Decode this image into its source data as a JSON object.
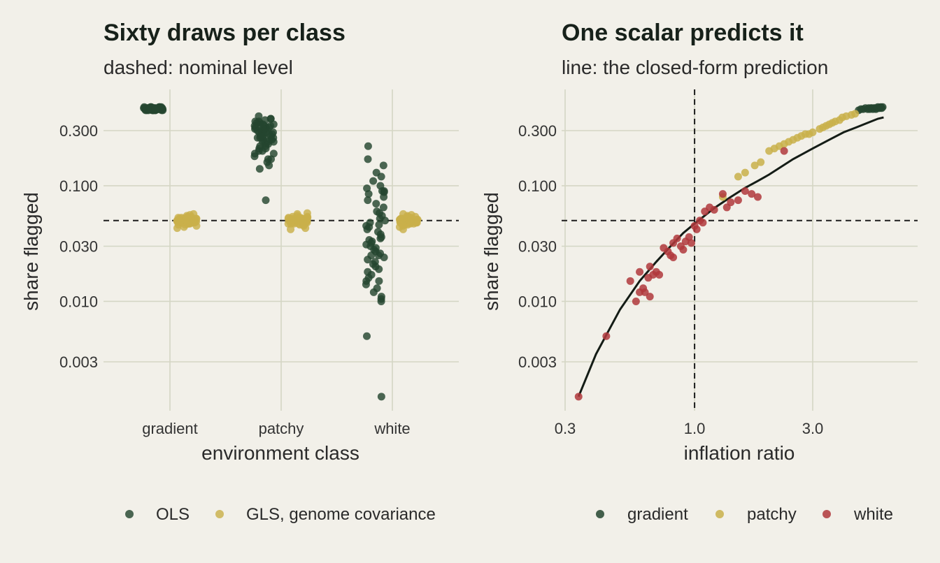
{
  "colors": {
    "background": "#f2f0e9",
    "grid": "#d4d6c4",
    "ols": "#24452f",
    "gls": "#c9b04a",
    "gradient": "#24452f",
    "patchy": "#c9b04a",
    "white": "#b0383c",
    "line": "#141c16"
  },
  "chart_data": [
    {
      "type": "scatter",
      "title": "Sixty draws per class",
      "subtitle": "dashed: nominal level",
      "xlabel": "environment class",
      "ylabel": "share flagged",
      "y_scale": "log10",
      "y_ticks": [
        0.003,
        0.01,
        0.03,
        0.1,
        0.3
      ],
      "y_tick_labels": [
        "0.003",
        "0.010",
        "0.030",
        "0.100",
        "0.300"
      ],
      "categories": [
        "gradient",
        "patchy",
        "white"
      ],
      "reference_y": 0.05,
      "grid": true,
      "legend_position": "bottom",
      "series": [
        {
          "name": "OLS",
          "values_by_category": {
            "gradient": [
              0.46,
              0.47,
              0.47,
              0.45,
              0.46,
              0.48,
              0.46,
              0.47,
              0.45,
              0.46,
              0.47,
              0.46,
              0.45,
              0.48,
              0.47,
              0.46,
              0.46,
              0.47,
              0.45,
              0.46,
              0.47,
              0.46,
              0.48,
              0.46,
              0.45,
              0.47,
              0.46,
              0.47,
              0.46,
              0.45,
              0.47,
              0.46,
              0.48,
              0.46,
              0.47,
              0.45,
              0.46,
              0.47,
              0.46,
              0.45,
              0.47,
              0.46,
              0.47,
              0.46,
              0.45,
              0.48,
              0.46,
              0.47,
              0.46,
              0.46,
              0.47,
              0.45,
              0.46,
              0.47,
              0.46,
              0.48,
              0.46,
              0.47,
              0.45,
              0.46
            ],
            "patchy": [
              0.4,
              0.38,
              0.37,
              0.36,
              0.35,
              0.35,
              0.34,
              0.34,
              0.33,
              0.33,
              0.32,
              0.32,
              0.31,
              0.31,
              0.3,
              0.3,
              0.29,
              0.29,
              0.28,
              0.28,
              0.27,
              0.27,
              0.26,
              0.26,
              0.25,
              0.25,
              0.24,
              0.24,
              0.23,
              0.22,
              0.21,
              0.2,
              0.19,
              0.18,
              0.17,
              0.16,
              0.15,
              0.14,
              0.075,
              0.36,
              0.33,
              0.31,
              0.29,
              0.27,
              0.26,
              0.25,
              0.24,
              0.23,
              0.22,
              0.2,
              0.3,
              0.28,
              0.32,
              0.34,
              0.26,
              0.21,
              0.19,
              0.17,
              0.38,
              0.29
            ],
            "white": [
              0.22,
              0.17,
              0.15,
              0.13,
              0.12,
              0.11,
              0.1,
              0.095,
              0.09,
              0.088,
              0.085,
              0.08,
              0.075,
              0.07,
              0.065,
              0.06,
              0.058,
              0.055,
              0.052,
              0.05,
              0.048,
              0.046,
              0.044,
              0.042,
              0.04,
              0.038,
              0.036,
              0.034,
              0.033,
              0.032,
              0.031,
              0.03,
              0.029,
              0.028,
              0.027,
              0.026,
              0.025,
              0.024,
              0.023,
              0.022,
              0.021,
              0.02,
              0.019,
              0.018,
              0.017,
              0.016,
              0.015,
              0.014,
              0.013,
              0.012,
              0.011,
              0.0105,
              0.01,
              0.005,
              0.0015,
              0.09,
              0.045,
              0.035,
              0.025,
              0.015
            ]
          }
        },
        {
          "name": "GLS, genome covariance",
          "values_by_category": {
            "gradient": [
              0.05,
              0.052,
              0.048,
              0.051,
              0.049,
              0.053,
              0.047,
              0.05,
              0.054,
              0.046,
              0.05,
              0.051,
              0.049,
              0.052,
              0.048,
              0.05,
              0.055,
              0.045,
              0.05,
              0.051,
              0.049,
              0.053,
              0.047,
              0.05,
              0.052,
              0.048,
              0.05,
              0.051,
              0.049,
              0.05,
              0.056,
              0.044,
              0.05,
              0.052,
              0.048,
              0.05,
              0.051,
              0.049,
              0.053,
              0.047,
              0.05,
              0.052,
              0.048,
              0.05,
              0.051,
              0.049,
              0.05,
              0.054,
              0.046,
              0.05,
              0.052,
              0.048,
              0.05,
              0.051,
              0.049,
              0.053,
              0.047,
              0.05,
              0.043,
              0.057
            ],
            "patchy": [
              0.05,
              0.052,
              0.048,
              0.051,
              0.049,
              0.053,
              0.047,
              0.05,
              0.054,
              0.046,
              0.05,
              0.051,
              0.049,
              0.052,
              0.048,
              0.05,
              0.055,
              0.045,
              0.05,
              0.051,
              0.049,
              0.053,
              0.047,
              0.05,
              0.052,
              0.048,
              0.05,
              0.051,
              0.049,
              0.05,
              0.057,
              0.043,
              0.05,
              0.052,
              0.048,
              0.05,
              0.051,
              0.049,
              0.053,
              0.047,
              0.05,
              0.052,
              0.048,
              0.05,
              0.051,
              0.049,
              0.05,
              0.054,
              0.046,
              0.05,
              0.052,
              0.048,
              0.05,
              0.051,
              0.049,
              0.053,
              0.047,
              0.05,
              0.042,
              0.058
            ],
            "white": [
              0.05,
              0.052,
              0.048,
              0.051,
              0.049,
              0.053,
              0.047,
              0.05,
              0.054,
              0.046,
              0.05,
              0.051,
              0.049,
              0.052,
              0.048,
              0.05,
              0.055,
              0.045,
              0.05,
              0.051,
              0.049,
              0.053,
              0.047,
              0.05,
              0.052,
              0.048,
              0.05,
              0.051,
              0.049,
              0.05,
              0.056,
              0.044,
              0.05,
              0.052,
              0.048,
              0.05,
              0.051,
              0.049,
              0.053,
              0.047,
              0.05,
              0.052,
              0.048,
              0.05,
              0.051,
              0.049,
              0.05,
              0.054,
              0.046,
              0.05,
              0.052,
              0.048,
              0.05,
              0.051,
              0.049,
              0.053,
              0.047,
              0.05,
              0.042,
              0.057
            ]
          }
        }
      ]
    },
    {
      "type": "scatter",
      "title": "One scalar predicts it",
      "subtitle": "line: the closed-form prediction",
      "xlabel": "inflation ratio",
      "ylabel": "share flagged",
      "x_scale": "log10",
      "y_scale": "log10",
      "xlim": [
        0.3,
        6.0
      ],
      "x_ticks": [
        0.3,
        1,
        3
      ],
      "x_tick_labels": [
        "0.3",
        "1.0",
        "3.0"
      ],
      "y_ticks": [
        0.003,
        0.01,
        0.03,
        0.1,
        0.3
      ],
      "y_tick_labels": [
        "0.003",
        "0.010",
        "0.030",
        "0.100",
        "0.300"
      ],
      "reference_y": 0.05,
      "reference_x": 1.0,
      "grid": true,
      "legend_position": "bottom",
      "series": [
        {
          "name": "gradient",
          "x": [
            4.6,
            4.7,
            4.8,
            4.9,
            5.0,
            5.05,
            5.1,
            5.15,
            5.2,
            5.25,
            5.3,
            5.35,
            5.4,
            5.45,
            5.5,
            5.55,
            5.6,
            5.65,
            5.7,
            5.75
          ],
          "y": [
            0.45,
            0.46,
            0.46,
            0.47,
            0.46,
            0.47,
            0.46,
            0.47,
            0.47,
            0.46,
            0.47,
            0.47,
            0.46,
            0.47,
            0.48,
            0.47,
            0.47,
            0.48,
            0.47,
            0.48
          ]
        },
        {
          "name": "patchy",
          "x": [
            1.3,
            1.5,
            1.6,
            1.75,
            1.85,
            2.0,
            2.1,
            2.2,
            2.3,
            2.4,
            2.5,
            2.6,
            2.7,
            2.8,
            2.9,
            3.0,
            3.2,
            3.3,
            3.4,
            3.5,
            3.6,
            3.7,
            3.85,
            3.95,
            4.1,
            4.3,
            4.45
          ],
          "y": [
            0.08,
            0.12,
            0.13,
            0.15,
            0.16,
            0.2,
            0.21,
            0.22,
            0.23,
            0.24,
            0.25,
            0.26,
            0.27,
            0.28,
            0.28,
            0.29,
            0.31,
            0.32,
            0.33,
            0.34,
            0.35,
            0.36,
            0.37,
            0.39,
            0.4,
            0.41,
            0.42
          ]
        },
        {
          "name": "white",
          "x": [
            0.34,
            0.44,
            0.55,
            0.58,
            0.6,
            0.62,
            0.63,
            0.65,
            0.66,
            0.68,
            0.7,
            0.72,
            0.75,
            0.78,
            0.8,
            0.82,
            0.85,
            0.88,
            0.9,
            0.92,
            0.95,
            0.97,
            1.0,
            1.02,
            1.05,
            1.08,
            1.1,
            1.15,
            1.2,
            1.3,
            1.35,
            1.4,
            1.5,
            1.6,
            1.7,
            1.8,
            2.3,
            0.66,
            0.6,
            0.82
          ],
          "y": [
            0.0015,
            0.005,
            0.015,
            0.01,
            0.018,
            0.013,
            0.012,
            0.016,
            0.011,
            0.017,
            0.018,
            0.017,
            0.029,
            0.027,
            0.025,
            0.032,
            0.035,
            0.03,
            0.028,
            0.033,
            0.036,
            0.032,
            0.045,
            0.042,
            0.05,
            0.048,
            0.06,
            0.065,
            0.062,
            0.085,
            0.065,
            0.072,
            0.075,
            0.09,
            0.085,
            0.08,
            0.2,
            0.02,
            0.012,
            0.024
          ]
        }
      ],
      "prediction_line": {
        "x": [
          0.34,
          0.4,
          0.5,
          0.6,
          0.7,
          0.8,
          0.9,
          1.0,
          1.2,
          1.4,
          1.6,
          1.8,
          2.0,
          2.5,
          3.0,
          3.5,
          4.0,
          4.5,
          5.0,
          5.5,
          5.8
        ],
        "y": [
          0.0015,
          0.0035,
          0.0085,
          0.015,
          0.022,
          0.03,
          0.039,
          0.047,
          0.064,
          0.08,
          0.096,
          0.11,
          0.125,
          0.17,
          0.21,
          0.25,
          0.29,
          0.32,
          0.35,
          0.38,
          0.39
        ]
      }
    }
  ],
  "legends": {
    "left": [
      "OLS",
      "GLS, genome covariance"
    ],
    "right": [
      "gradient",
      "patchy",
      "white"
    ]
  }
}
